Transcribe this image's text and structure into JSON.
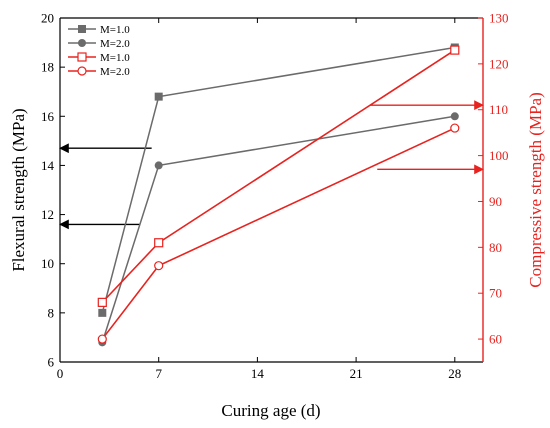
{
  "chart_data": {
    "type": "line",
    "x": [
      3,
      7,
      28
    ],
    "xlabel": "Curing age (d)",
    "xlim": [
      0,
      30
    ],
    "xticks": [
      0,
      7,
      14,
      21,
      28
    ],
    "ylabel_left": "Flexural strength (MPa)",
    "ylim_left": [
      6,
      20
    ],
    "yticks_left": [
      6,
      8,
      10,
      12,
      14,
      16,
      18,
      20
    ],
    "ylabel_right": "Compressive strength (MPa)",
    "ylim_right": [
      55,
      130
    ],
    "yticks_right": [
      60,
      70,
      80,
      90,
      100,
      110,
      120,
      130
    ],
    "legend_position": "top-left",
    "colors": {
      "left_axis": "#000000",
      "right_axis": "#e8231f",
      "left_series": "#6b6b6b",
      "right_series": "#e8231f"
    },
    "series": [
      {
        "name": "M=1.0",
        "axis": "left",
        "marker": "square-filled",
        "values": [
          8.0,
          16.8,
          18.8
        ]
      },
      {
        "name": "M=2.0",
        "axis": "left",
        "marker": "circle-filled",
        "values": [
          6.8,
          14.0,
          16.0
        ]
      },
      {
        "name": "M=1.0",
        "axis": "right",
        "marker": "square-open",
        "values": [
          68,
          81,
          123
        ]
      },
      {
        "name": "M=2.0",
        "axis": "right",
        "marker": "circle-open",
        "values": [
          60,
          76,
          106
        ]
      }
    ],
    "arrows": [
      {
        "direction": "left",
        "from_x": 6.5,
        "y": 14.7,
        "axis": "left"
      },
      {
        "direction": "left",
        "from_x": 5.7,
        "y": 11.6,
        "axis": "left"
      },
      {
        "direction": "right",
        "from_x": 22,
        "y": 111,
        "axis": "right"
      },
      {
        "direction": "right",
        "from_x": 22.5,
        "y": 97,
        "axis": "right"
      }
    ]
  }
}
